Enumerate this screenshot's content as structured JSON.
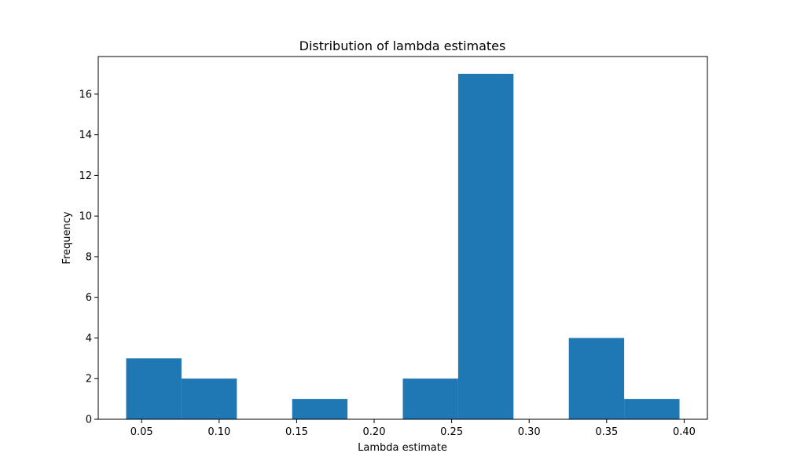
{
  "chart_data": {
    "type": "bar",
    "title": "Distribution of lambda estimates",
    "xlabel": "Lambda estimate",
    "ylabel": "Frequency",
    "bin_edges": [
      0.04,
      0.0757,
      0.1114,
      0.1471,
      0.1828,
      0.2185,
      0.2542,
      0.2899,
      0.3256,
      0.3613,
      0.397
    ],
    "values": [
      3,
      2,
      0,
      1,
      0,
      2,
      17,
      0,
      4,
      1
    ],
    "xlim": [
      0.022,
      0.415
    ],
    "ylim": [
      0,
      17.85
    ],
    "xticks": [
      0.05,
      0.1,
      0.15,
      0.2,
      0.25,
      0.3,
      0.35,
      0.4
    ],
    "xtick_labels": [
      "0.05",
      "0.10",
      "0.15",
      "0.20",
      "0.25",
      "0.30",
      "0.35",
      "0.40"
    ],
    "yticks": [
      0,
      2,
      4,
      6,
      8,
      10,
      12,
      14,
      16
    ],
    "ytick_labels": [
      "0",
      "2",
      "4",
      "6",
      "8",
      "10",
      "12",
      "14",
      "16"
    ],
    "grid": false,
    "legend": "none",
    "bar_color": "#1f77b4"
  }
}
